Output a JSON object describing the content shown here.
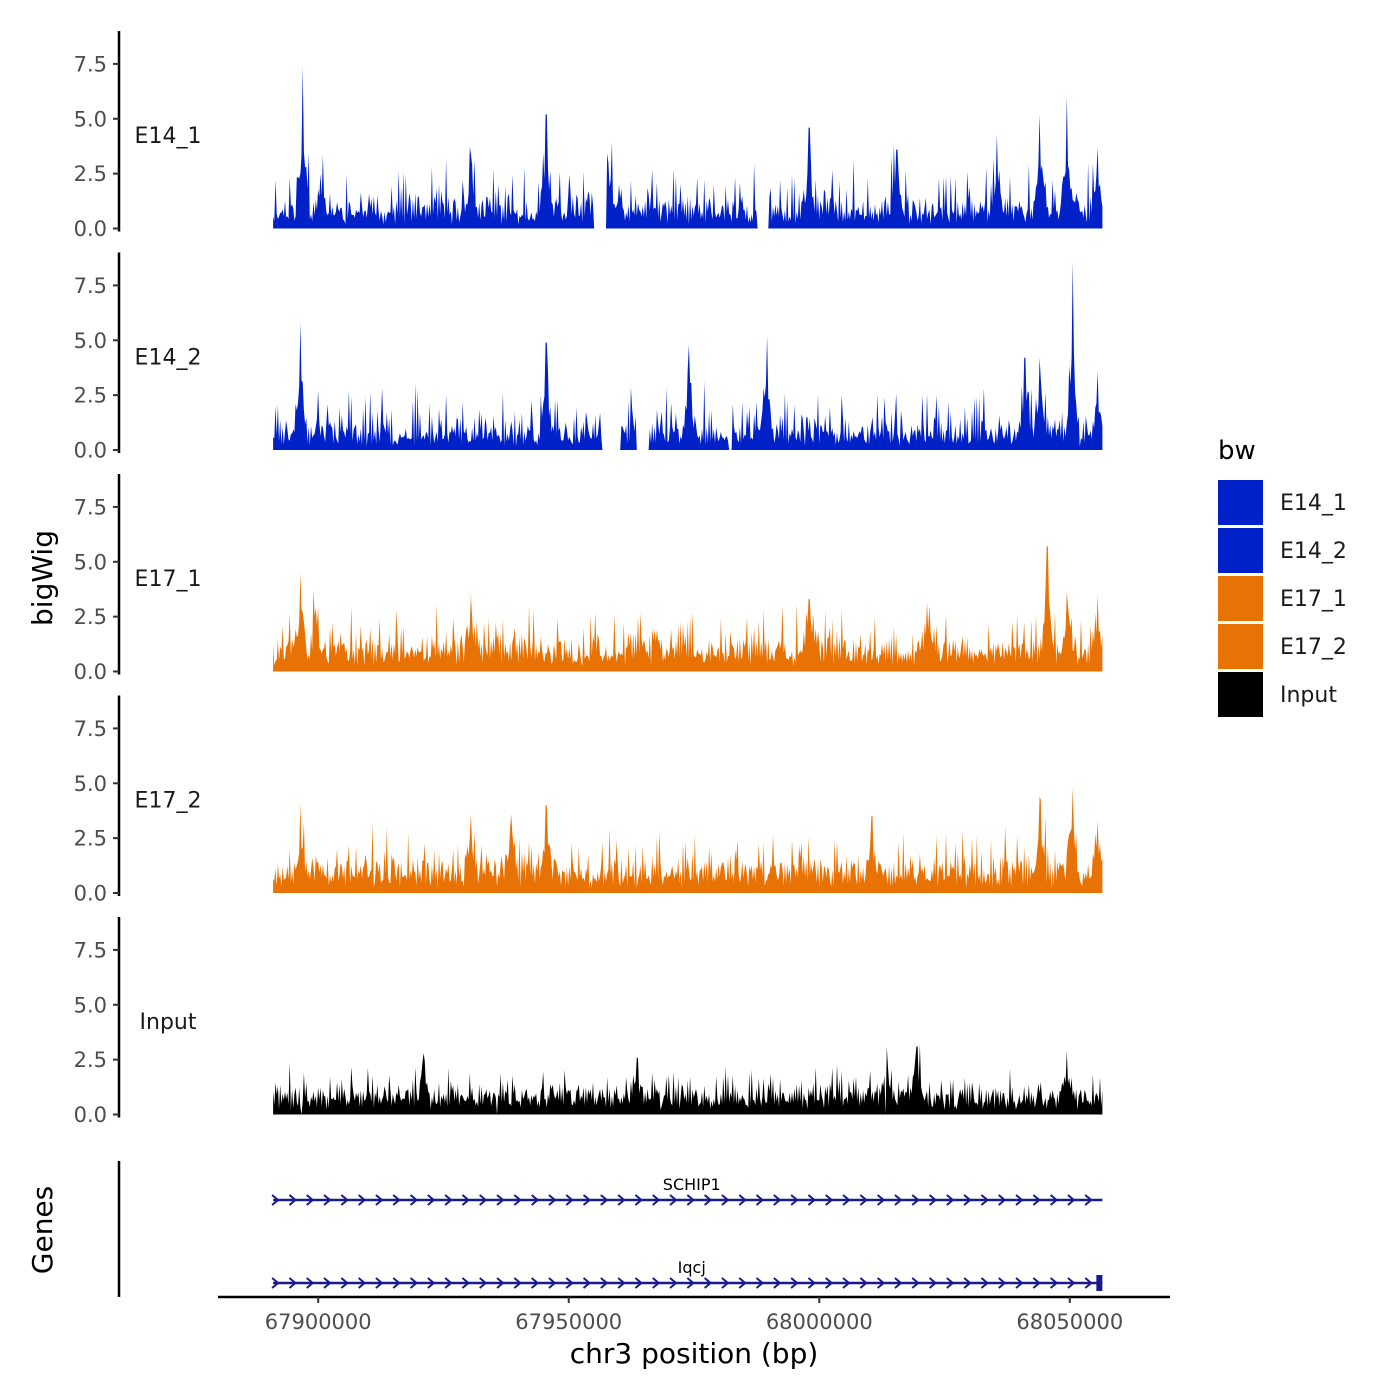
{
  "chart_data": {
    "type": "area",
    "xlabel": "chr3 position (bp)",
    "ylabel": "bigWig",
    "genes_label": "Genes",
    "xlim": [
      67880000,
      68070000
    ],
    "x_ticks": [
      67900000,
      67950000,
      68000000,
      68050000
    ],
    "x_tick_labels": [
      "67900000",
      "67950000",
      "68000000",
      "68050000"
    ],
    "ylim": [
      0,
      9
    ],
    "y_ticks": [
      0,
      2.5,
      5,
      7.5
    ],
    "y_tick_labels": [
      "0.0",
      "2.5",
      "5.0",
      "7.5"
    ],
    "region": [
      67891000,
      68056500
    ],
    "legend": {
      "title": "bw",
      "items": [
        {
          "label": "E14_1",
          "color": "#0020c8"
        },
        {
          "label": "E14_2",
          "color": "#0020c8"
        },
        {
          "label": "E17_1",
          "color": "#e87304"
        },
        {
          "label": "E17_2",
          "color": "#e87304"
        },
        {
          "label": "Input",
          "color": "#000000"
        }
      ]
    },
    "series": [
      {
        "name": "E14_1",
        "color": "#0020c8",
        "base": 0.9,
        "noise": 1.0,
        "seed": 11,
        "gaps": [
          [
            67955000,
            67957500
          ],
          [
            67987500,
            67990000
          ]
        ],
        "peaks": [
          {
            "x": 67897000,
            "y": 7.4
          },
          {
            "x": 67900500,
            "y": 2.5
          },
          {
            "x": 67930500,
            "y": 3.4
          },
          {
            "x": 67945500,
            "y": 5.2
          },
          {
            "x": 67958000,
            "y": 3.0
          },
          {
            "x": 67998000,
            "y": 4.6
          },
          {
            "x": 68015500,
            "y": 3.6
          },
          {
            "x": 68035500,
            "y": 4.3
          },
          {
            "x": 68044000,
            "y": 5.2
          },
          {
            "x": 68049500,
            "y": 6.0
          },
          {
            "x": 68055500,
            "y": 3.7
          }
        ]
      },
      {
        "name": "E14_2",
        "color": "#0020c8",
        "base": 0.8,
        "noise": 1.0,
        "seed": 23,
        "gaps": [
          [
            67956500,
            67960500
          ],
          [
            67963500,
            67966000
          ],
          [
            67982000,
            67982500
          ]
        ],
        "peaks": [
          {
            "x": 67896500,
            "y": 5.8
          },
          {
            "x": 67945500,
            "y": 4.9
          },
          {
            "x": 67963500,
            "y": 1.8
          },
          {
            "x": 67974000,
            "y": 4.8
          },
          {
            "x": 67989500,
            "y": 5.2
          },
          {
            "x": 68041000,
            "y": 4.2
          },
          {
            "x": 68044000,
            "y": 4.2
          },
          {
            "x": 68050500,
            "y": 8.6
          },
          {
            "x": 68055500,
            "y": 3.6
          }
        ]
      },
      {
        "name": "E17_1",
        "color": "#e87304",
        "base": 1.1,
        "noise": 0.9,
        "seed": 37,
        "gaps": [],
        "peaks": [
          {
            "x": 67896500,
            "y": 4.5
          },
          {
            "x": 67899500,
            "y": 2.9
          },
          {
            "x": 67930500,
            "y": 3.5
          },
          {
            "x": 67998000,
            "y": 3.3
          },
          {
            "x": 68022000,
            "y": 3.0
          },
          {
            "x": 68045500,
            "y": 5.7
          },
          {
            "x": 68049500,
            "y": 3.6
          },
          {
            "x": 68055500,
            "y": 3.5
          }
        ]
      },
      {
        "name": "E17_2",
        "color": "#e87304",
        "base": 1.1,
        "noise": 0.9,
        "seed": 53,
        "gaps": [],
        "peaks": [
          {
            "x": 67896500,
            "y": 4.1
          },
          {
            "x": 67930500,
            "y": 3.6
          },
          {
            "x": 67938500,
            "y": 3.6
          },
          {
            "x": 67945500,
            "y": 4.0
          },
          {
            "x": 68010500,
            "y": 3.5
          },
          {
            "x": 68044000,
            "y": 4.4
          },
          {
            "x": 68050500,
            "y": 4.8
          },
          {
            "x": 68055500,
            "y": 3.3
          }
        ]
      },
      {
        "name": "Input",
        "color": "#000000",
        "base": 1.0,
        "noise": 0.6,
        "seed": 71,
        "gaps": [
          [
            67896500,
            67896800
          ],
          [
            67935500,
            67935800
          ],
          [
            68013000,
            68013300
          ]
        ],
        "peaks": [
          {
            "x": 67921000,
            "y": 2.8
          },
          {
            "x": 67963500,
            "y": 2.6
          },
          {
            "x": 68013500,
            "y": 3.1
          },
          {
            "x": 68019500,
            "y": 3.1
          },
          {
            "x": 68049500,
            "y": 2.9
          }
        ]
      }
    ],
    "genes": [
      {
        "name": "SCHIP1",
        "start": 67891000,
        "end": 68056500,
        "strand": "+",
        "row": 1
      },
      {
        "name": "Iqcj",
        "start": 67891000,
        "end": 68056500,
        "strand": "+",
        "row": 2
      }
    ]
  }
}
